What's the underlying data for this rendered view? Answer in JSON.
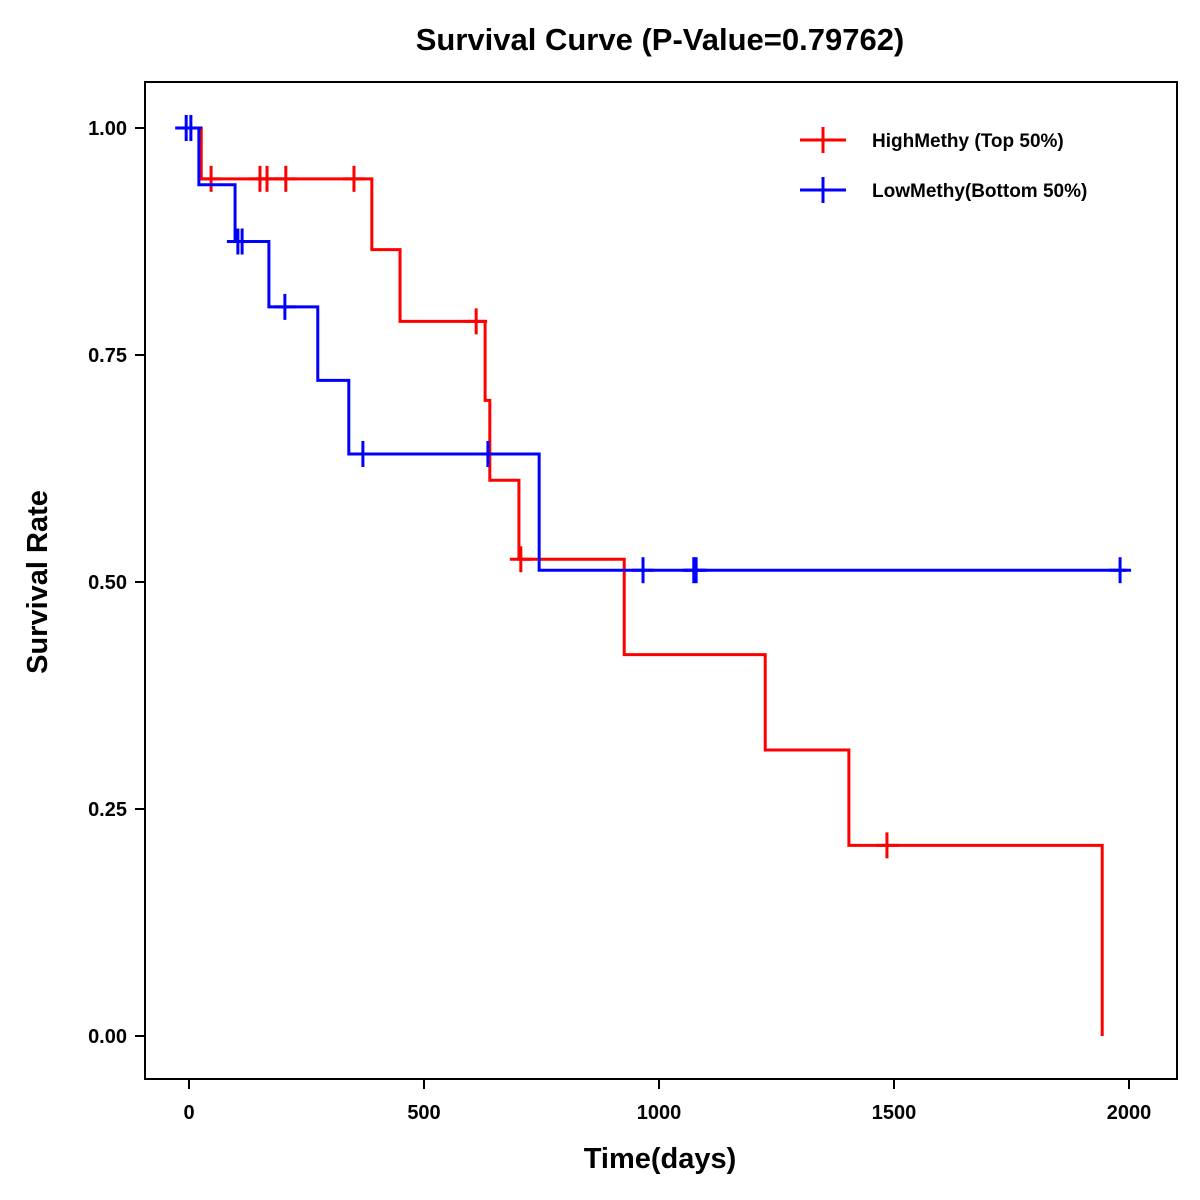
{
  "chart_data": {
    "type": "line",
    "subtype": "kaplan-meier-step",
    "title": "Survival Curve (P-Value=0.79762)",
    "xlabel": "Time(days)",
    "ylabel": "Survival Rate",
    "xlim": [
      -90,
      2080
    ],
    "ylim": [
      -0.05,
      1.05
    ],
    "x_ticks": [
      0,
      500,
      1000,
      1500,
      2000
    ],
    "x_tick_labels": [
      "0",
      "500",
      "1000",
      "1500",
      "2000"
    ],
    "y_ticks": [
      0,
      0.25,
      0.5,
      0.75,
      1.0
    ],
    "y_tick_labels": [
      "0.00",
      "0.25",
      "0.50",
      "0.75",
      "1.00"
    ],
    "grid": false,
    "legend_position": "top-right",
    "series": [
      {
        "name": "HighMethy (Top 50%)",
        "color": "#ff0000",
        "steps": [
          {
            "time": 0,
            "survival": 1.0
          },
          {
            "time": 26,
            "survival": 0.944
          },
          {
            "time": 389,
            "survival": 0.866
          },
          {
            "time": 449,
            "survival": 0.787
          },
          {
            "time": 630,
            "survival": 0.7
          },
          {
            "time": 640,
            "survival": 0.612
          },
          {
            "time": 702,
            "survival": 0.525
          },
          {
            "time": 926,
            "survival": 0.42
          },
          {
            "time": 1226,
            "survival": 0.315
          },
          {
            "time": 1404,
            "survival": 0.21
          },
          {
            "time": 1943,
            "survival": 0.0
          }
        ],
        "end_time": 1943,
        "censored": [
          {
            "time": 47,
            "survival": 0.944
          },
          {
            "time": 151,
            "survival": 0.944
          },
          {
            "time": 166,
            "survival": 0.944
          },
          {
            "time": 206,
            "survival": 0.944
          },
          {
            "time": 351,
            "survival": 0.944
          },
          {
            "time": 611,
            "survival": 0.787
          },
          {
            "time": 706,
            "survival": 0.525
          },
          {
            "time": 1485,
            "survival": 0.21
          }
        ]
      },
      {
        "name": "LowMethy(Bottom 50%)",
        "color": "#0000ff",
        "steps": [
          {
            "time": 0,
            "survival": 1.0
          },
          {
            "time": 21,
            "survival": 0.9375
          },
          {
            "time": 98,
            "survival": 0.875
          },
          {
            "time": 170,
            "survival": 0.803
          },
          {
            "time": 274,
            "survival": 0.722
          },
          {
            "time": 340,
            "survival": 0.641
          },
          {
            "time": 745,
            "survival": 0.513
          }
        ],
        "end_time": 1995,
        "censored": [
          {
            "time": -6,
            "survival": 1.0
          },
          {
            "time": 4,
            "survival": 1.0
          },
          {
            "time": 104,
            "survival": 0.875
          },
          {
            "time": 113,
            "survival": 0.875
          },
          {
            "time": 204,
            "survival": 0.803
          },
          {
            "time": 370,
            "survival": 0.641
          },
          {
            "time": 636,
            "survival": 0.641
          },
          {
            "time": 966,
            "survival": 0.513
          },
          {
            "time": 1074,
            "survival": 0.513
          },
          {
            "time": 1079,
            "survival": 0.513
          },
          {
            "time": 1981,
            "survival": 0.513
          }
        ]
      }
    ]
  }
}
